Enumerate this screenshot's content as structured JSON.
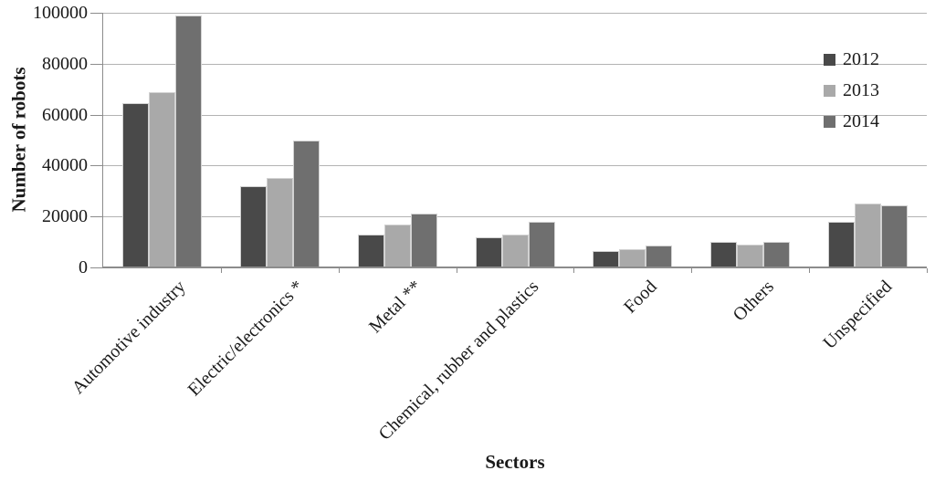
{
  "chart_data": {
    "type": "bar",
    "title": "",
    "xlabel": "Sectors",
    "ylabel": "Number of robots",
    "ylim": [
      0,
      100000
    ],
    "yticks": [
      0,
      20000,
      40000,
      60000,
      80000,
      100000
    ],
    "grid": true,
    "legend_position": "top-right",
    "categories": [
      "Automotive industry",
      "Electric/electronics *",
      "Metal **",
      "Chemical, rubber and plastics",
      "Food",
      "Others",
      "Unspecified"
    ],
    "series": [
      {
        "name": "2012",
        "color": "#494949",
        "values": [
          64500,
          32000,
          13000,
          12000,
          6500,
          10000,
          18000
        ]
      },
      {
        "name": "2013",
        "color": "#a9a9a9",
        "values": [
          69000,
          35000,
          17000,
          13000,
          7000,
          9000,
          25000
        ]
      },
      {
        "name": "2014",
        "color": "#6f6f6f",
        "values": [
          99000,
          50000,
          21000,
          18000,
          8500,
          10000,
          24500
        ]
      }
    ]
  },
  "colors": {
    "background": "#ffffff",
    "gridline": "#b3b3b3",
    "axis": "#8c8c8c",
    "text": "#1a1a1a"
  }
}
